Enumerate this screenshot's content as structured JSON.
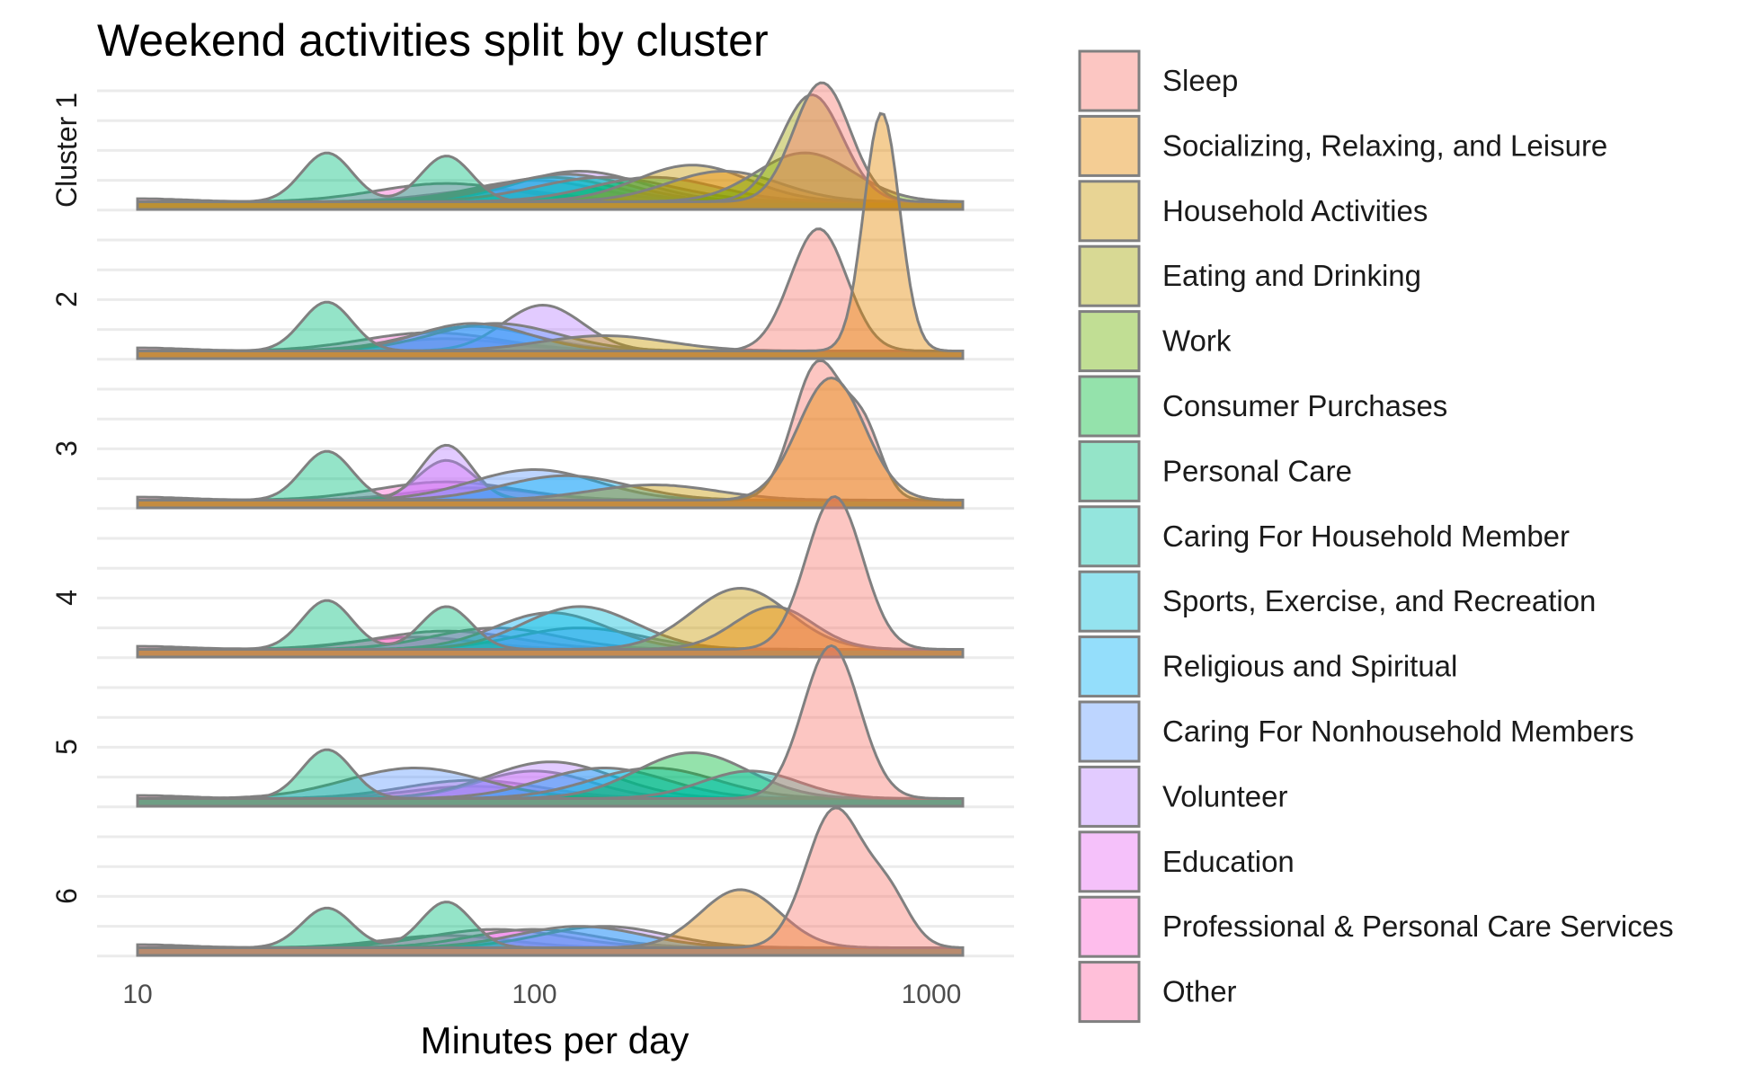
{
  "chart_data": {
    "type": "area",
    "subtype": "ridgeline-density",
    "title": "Weekend activities split by cluster",
    "xlabel": "Minutes per day",
    "ylabel": "",
    "x_scale": "log10",
    "xlim": [
      10,
      1200
    ],
    "x_ticks": [
      10,
      100,
      1000
    ],
    "x_tick_labels": [
      "10",
      "100",
      "1000"
    ],
    "rows": [
      "Cluster 1",
      "2",
      "3",
      "4",
      "5",
      "6"
    ],
    "legend_position": "right",
    "grid": true,
    "categories": [
      {
        "name": "Sleep",
        "color": "#F8766D"
      },
      {
        "name": "Socializing, Relaxing, and Leisure",
        "color": "#E58700"
      },
      {
        "name": "Household Activities",
        "color": "#C99800"
      },
      {
        "name": "Eating and Drinking",
        "color": "#A3A500"
      },
      {
        "name": "Work",
        "color": "#6BB100"
      },
      {
        "name": "Consumer Purchases",
        "color": "#00BA38"
      },
      {
        "name": "Personal Care",
        "color": "#00BF7D"
      },
      {
        "name": "Caring For Household Member",
        "color": "#00C0AF"
      },
      {
        "name": "Sports, Exercise, and Recreation",
        "color": "#00BCD8"
      },
      {
        "name": "Religious and Spiritual",
        "color": "#00B0F6"
      },
      {
        "name": "Caring For Nonhousehold Members",
        "color": "#619CFF"
      },
      {
        "name": "Volunteer",
        "color": "#B983FF"
      },
      {
        "name": "Education",
        "color": "#E76BF3"
      },
      {
        "name": "Professional & Personal Care Services",
        "color": "#FD61D1"
      },
      {
        "name": "Other",
        "color": "#FF67A4"
      }
    ],
    "series": [
      {
        "row": "Cluster 1",
        "category": "Other",
        "bumps": [
          [
            10,
            0.1,
            0.03
          ],
          [
            80,
            0.4,
            0.05
          ]
        ]
      },
      {
        "row": "Cluster 1",
        "category": "Professional & Personal Care Services",
        "bumps": [
          [
            60,
            0.6,
            0.06
          ]
        ]
      },
      {
        "row": "Cluster 1",
        "category": "Education",
        "bumps": [
          [
            100,
            0.7,
            0.05
          ]
        ]
      },
      {
        "row": "Cluster 1",
        "category": "Volunteer",
        "bumps": [
          [
            130,
            1.0,
            0.05
          ]
        ]
      },
      {
        "row": "Cluster 1",
        "category": "Religious and Spiritual",
        "bumps": [
          [
            110,
            0.8,
            0.05
          ]
        ]
      },
      {
        "row": "Cluster 1",
        "category": "Sports, Exercise, and Recreation",
        "bumps": [
          [
            120,
            0.9,
            0.05
          ]
        ]
      },
      {
        "row": "Cluster 1",
        "category": "Caring For Household Member",
        "bumps": [
          [
            150,
            0.8,
            0.06
          ]
        ]
      },
      {
        "row": "Cluster 1",
        "category": "Personal Care",
        "bumps": [
          [
            30,
            1.6,
            0.008
          ],
          [
            60,
            1.5,
            0.008
          ]
        ]
      },
      {
        "row": "Cluster 1",
        "category": "Consumer Purchases",
        "bumps": [
          [
            200,
            0.8,
            0.05
          ]
        ]
      },
      {
        "row": "Cluster 1",
        "category": "Household Activities",
        "bumps": [
          [
            250,
            1.2,
            0.04
          ]
        ]
      },
      {
        "row": "Cluster 1",
        "category": "Socializing, Relaxing, and Leisure",
        "bumps": [
          [
            300,
            1.0,
            0.04
          ]
        ]
      },
      {
        "row": "Cluster 1",
        "category": "Work",
        "bumps": [
          [
            480,
            1.6,
            0.03
          ]
        ]
      },
      {
        "row": "Cluster 1",
        "category": "Eating and Drinking",
        "bumps": [
          [
            500,
            3.5,
            0.012
          ]
        ]
      },
      {
        "row": "Cluster 1",
        "category": "Sleep",
        "bumps": [
          [
            530,
            3.9,
            0.01
          ]
        ]
      },
      {
        "row": "2",
        "category": "Other",
        "bumps": [
          [
            10,
            0.1,
            0.03
          ],
          [
            60,
            0.4,
            0.05
          ]
        ]
      },
      {
        "row": "2",
        "category": "Professional & Personal Care Services",
        "bumps": [
          [
            55,
            0.6,
            0.06
          ]
        ]
      },
      {
        "row": "2",
        "category": "Education",
        "bumps": [
          [
            70,
            0.8,
            0.05
          ]
        ]
      },
      {
        "row": "2",
        "category": "Volunteer",
        "bumps": [
          [
            105,
            1.5,
            0.02
          ]
        ]
      },
      {
        "row": "2",
        "category": "Caring For Nonhousehold Members",
        "bumps": [
          [
            80,
            0.9,
            0.05
          ]
        ]
      },
      {
        "row": "2",
        "category": "Religious and Spiritual",
        "bumps": [
          [
            70,
            0.9,
            0.04
          ]
        ]
      },
      {
        "row": "2",
        "category": "Personal Care",
        "bumps": [
          [
            30,
            1.6,
            0.008
          ]
        ]
      },
      {
        "row": "2",
        "category": "Household Activities",
        "bumps": [
          [
            150,
            0.5,
            0.05
          ]
        ]
      },
      {
        "row": "2",
        "category": "Sleep",
        "bumps": [
          [
            520,
            4.0,
            0.01
          ]
        ]
      },
      {
        "row": "2",
        "category": "Socializing, Relaxing, and Leisure",
        "bumps": [
          [
            750,
            7.8,
            0.004
          ]
        ]
      },
      {
        "row": "3",
        "category": "Other",
        "bumps": [
          [
            10,
            0.1,
            0.03
          ],
          [
            70,
            0.4,
            0.05
          ]
        ]
      },
      {
        "row": "3",
        "category": "Professional & Personal Care Services",
        "bumps": [
          [
            60,
            0.6,
            0.06
          ]
        ]
      },
      {
        "row": "3",
        "category": "Education",
        "bumps": [
          [
            60,
            1.3,
            0.01
          ]
        ]
      },
      {
        "row": "3",
        "category": "Volunteer",
        "bumps": [
          [
            60,
            1.8,
            0.008
          ]
        ]
      },
      {
        "row": "3",
        "category": "Caring For Nonhousehold Members",
        "bumps": [
          [
            100,
            1.0,
            0.05
          ]
        ]
      },
      {
        "row": "3",
        "category": "Religious and Spiritual",
        "bumps": [
          [
            120,
            0.8,
            0.05
          ]
        ]
      },
      {
        "row": "3",
        "category": "Personal Care",
        "bumps": [
          [
            30,
            1.6,
            0.008
          ]
        ]
      },
      {
        "row": "3",
        "category": "Household Activities",
        "bumps": [
          [
            200,
            0.5,
            0.05
          ]
        ]
      },
      {
        "row": "3",
        "category": "Sleep",
        "bumps": [
          [
            520,
            4.5,
            0.008
          ],
          [
            680,
            2.0,
            0.004
          ]
        ]
      },
      {
        "row": "3",
        "category": "Socializing, Relaxing, and Leisure",
        "bumps": [
          [
            560,
            4.0,
            0.014
          ]
        ]
      },
      {
        "row": "4",
        "category": "Other",
        "bumps": [
          [
            10,
            0.1,
            0.03
          ],
          [
            50,
            0.4,
            0.05
          ]
        ]
      },
      {
        "row": "4",
        "category": "Professional & Personal Care Services",
        "bumps": [
          [
            60,
            0.6,
            0.06
          ]
        ]
      },
      {
        "row": "4",
        "category": "Education",
        "bumps": [
          [
            80,
            0.7,
            0.05
          ]
        ]
      },
      {
        "row": "4",
        "category": "Volunteer",
        "bumps": [
          [
            130,
            0.7,
            0.05
          ]
        ]
      },
      {
        "row": "4",
        "category": "Religious and Spiritual",
        "bumps": [
          [
            110,
            1.2,
            0.04
          ]
        ]
      },
      {
        "row": "4",
        "category": "Sports, Exercise, and Recreation",
        "bumps": [
          [
            130,
            1.4,
            0.04
          ]
        ]
      },
      {
        "row": "4",
        "category": "Personal Care",
        "bumps": [
          [
            30,
            1.6,
            0.008
          ],
          [
            60,
            1.4,
            0.008
          ]
        ]
      },
      {
        "row": "4",
        "category": "Household Activities",
        "bumps": [
          [
            330,
            2.0,
            0.03
          ]
        ]
      },
      {
        "row": "4",
        "category": "Socializing, Relaxing, and Leisure",
        "bumps": [
          [
            400,
            1.4,
            0.02
          ]
        ]
      },
      {
        "row": "4",
        "category": "Sleep",
        "bumps": [
          [
            570,
            5.0,
            0.01
          ]
        ]
      },
      {
        "row": "5",
        "category": "Other",
        "bumps": [
          [
            10,
            0.1,
            0.03
          ],
          [
            70,
            0.4,
            0.05
          ]
        ]
      },
      {
        "row": "5",
        "category": "Professional & Personal Care Services",
        "bumps": [
          [
            70,
            0.6,
            0.06
          ]
        ]
      },
      {
        "row": "5",
        "category": "Education",
        "bumps": [
          [
            100,
            0.9,
            0.04
          ]
        ]
      },
      {
        "row": "5",
        "category": "Volunteer",
        "bumps": [
          [
            110,
            1.2,
            0.05
          ]
        ]
      },
      {
        "row": "5",
        "category": "Caring For Nonhousehold Members",
        "bumps": [
          [
            50,
            1.0,
            0.06
          ]
        ]
      },
      {
        "row": "5",
        "category": "Religious and Spiritual",
        "bumps": [
          [
            150,
            1.0,
            0.05
          ]
        ]
      },
      {
        "row": "5",
        "category": "Sports, Exercise, and Recreation",
        "bumps": [
          [
            200,
            1.0,
            0.05
          ]
        ]
      },
      {
        "row": "5",
        "category": "Personal Care",
        "bumps": [
          [
            30,
            1.6,
            0.008
          ]
        ]
      },
      {
        "row": "5",
        "category": "Consumer Purchases",
        "bumps": [
          [
            250,
            1.5,
            0.04
          ]
        ]
      },
      {
        "row": "5",
        "category": "Caring For Household Member",
        "bumps": [
          [
            350,
            0.9,
            0.03
          ]
        ]
      },
      {
        "row": "5",
        "category": "Sleep",
        "bumps": [
          [
            560,
            5.0,
            0.01
          ]
        ]
      },
      {
        "row": "6",
        "category": "Other",
        "bumps": [
          [
            10,
            0.1,
            0.03
          ],
          [
            60,
            0.4,
            0.05
          ]
        ]
      },
      {
        "row": "6",
        "category": "Professional & Personal Care Services",
        "bumps": [
          [
            80,
            0.6,
            0.06
          ]
        ]
      },
      {
        "row": "6",
        "category": "Education",
        "bumps": [
          [
            100,
            0.6,
            0.05
          ]
        ]
      },
      {
        "row": "6",
        "category": "Volunteer",
        "bumps": [
          [
            150,
            0.7,
            0.05
          ]
        ]
      },
      {
        "row": "6",
        "category": "Religious and Spiritual",
        "bumps": [
          [
            130,
            0.7,
            0.05
          ]
        ]
      },
      {
        "row": "6",
        "category": "Personal Care",
        "bumps": [
          [
            30,
            1.3,
            0.008
          ],
          [
            60,
            1.5,
            0.008
          ]
        ]
      },
      {
        "row": "6",
        "category": "Socializing, Relaxing, and Leisure",
        "bumps": [
          [
            330,
            1.9,
            0.02
          ]
        ]
      },
      {
        "row": "6",
        "category": "Sleep",
        "bumps": [
          [
            570,
            4.5,
            0.01
          ],
          [
            780,
            1.6,
            0.006
          ]
        ]
      }
    ]
  }
}
